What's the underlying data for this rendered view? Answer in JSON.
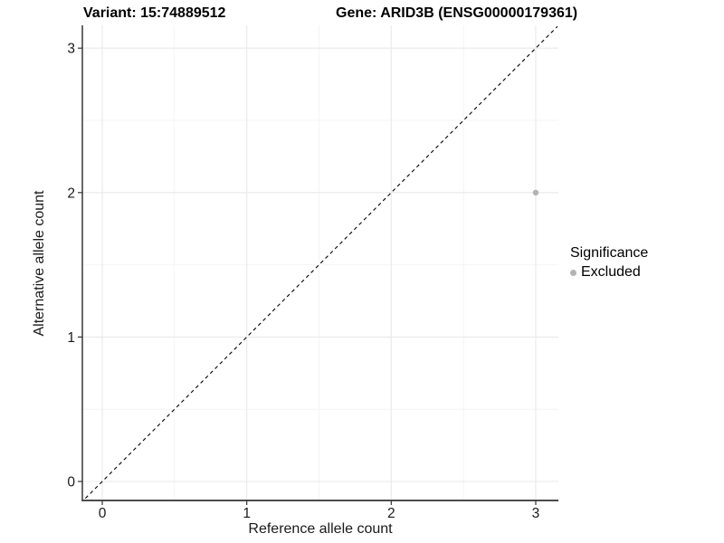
{
  "chart_data": {
    "type": "scatter",
    "title_left": "Variant: 15:74889512",
    "title_right": "Gene: ARID3B (ENSG00000179361)",
    "xlabel": "Reference allele count",
    "ylabel": "Alternative allele count",
    "xlim": [
      -0.15,
      3.15
    ],
    "ylim": [
      -0.15,
      3.15
    ],
    "x_ticks": [
      0,
      1,
      2,
      3
    ],
    "y_ticks": [
      0,
      1,
      2,
      3
    ],
    "x_minor_ticks": [
      0.5,
      1.5,
      2.5
    ],
    "y_minor_ticks": [
      0.5,
      1.5,
      2.5
    ],
    "grid": {
      "major": true,
      "minor": true
    },
    "series": [
      {
        "name": "Excluded",
        "color": "#b3b3b3",
        "points": [
          {
            "x": 3,
            "y": 2
          }
        ],
        "point_radius": 3.2
      }
    ],
    "reference_line": {
      "kind": "identity",
      "style": "dashed",
      "color": "#000000"
    },
    "legend": {
      "position": "right",
      "title": "Significance",
      "entries": [
        {
          "label": "Excluded",
          "color": "#b3b3b3",
          "marker": "dot-icon"
        }
      ]
    },
    "colors": {
      "grid_major": "#e9e9e9",
      "grid_minor": "#f4f4f4",
      "axis_line": "#4d4d4d",
      "tick_mark": "#333333",
      "axis_text": "#1a1a1a"
    }
  }
}
